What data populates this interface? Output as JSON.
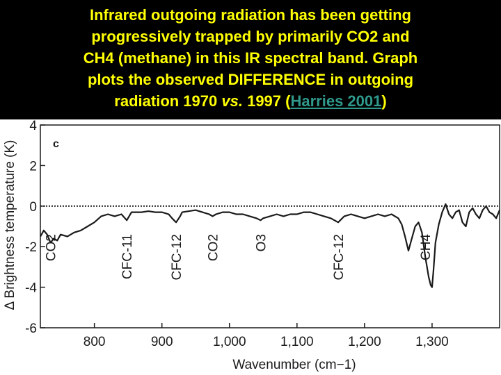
{
  "headline": {
    "line1": "Infrared outgoing radiation has been getting",
    "line2": "progressively trapped by primarily CO2 and",
    "line3": "CH4 (methane) in this IR spectral band. Graph",
    "line4": "plots the observed DIFFERENCE in outgoing",
    "line5_pre": "radiation 1970 ",
    "line5_ital": "vs.",
    "line5_mid": " 1997 (",
    "line5_link": "Harries 2001",
    "line5_post": ")",
    "text_color": "#ffff00",
    "link_color": "#2f9a8c",
    "background": "#000000"
  },
  "chart_data": {
    "type": "line",
    "panel_label": "c",
    "xlabel": "Wavenumber (cm−1)",
    "ylabel": "Δ Brightness temperature (K)",
    "xlim": [
      720,
      1400
    ],
    "ylim": [
      -6,
      4
    ],
    "xticks": [
      800,
      900,
      1000,
      1100,
      1200,
      1300
    ],
    "xtick_labels": [
      "800",
      "900",
      "1,000",
      "1,100",
      "1,200",
      "1,300"
    ],
    "yticks": [
      4,
      2,
      0,
      -2,
      -4,
      -6
    ],
    "ytick_labels": [
      "4",
      "2",
      "0",
      "-2",
      "-4",
      "-6"
    ],
    "reference_line": {
      "y": 0,
      "style": "dotted"
    },
    "annotations": [
      {
        "text": "CO2",
        "x": 735
      },
      {
        "text": "CFC-11",
        "x": 848
      },
      {
        "text": "CFC-12",
        "x": 921
      },
      {
        "text": "CO2",
        "x": 975
      },
      {
        "text": "O3",
        "x": 1046
      },
      {
        "text": "CFC-12",
        "x": 1161
      },
      {
        "text": "CH4",
        "x": 1290
      }
    ],
    "series": [
      {
        "x": [
          720,
          725,
          730,
          735,
          740,
          745,
          750,
          760,
          770,
          780,
          790,
          800,
          810,
          820,
          830,
          840,
          848,
          855,
          860,
          870,
          880,
          890,
          900,
          910,
          915,
          921,
          927,
          930,
          940,
          950,
          960,
          970,
          975,
          980,
          990,
          1000,
          1010,
          1020,
          1030,
          1040,
          1046,
          1050,
          1060,
          1070,
          1080,
          1090,
          1100,
          1110,
          1120,
          1130,
          1140,
          1150,
          1161,
          1170,
          1180,
          1190,
          1200,
          1210,
          1220,
          1230,
          1240,
          1250,
          1255,
          1260,
          1265,
          1270,
          1275,
          1280,
          1285,
          1290,
          1295,
          1298,
          1300,
          1302,
          1305,
          1310,
          1315,
          1320,
          1325,
          1330,
          1335,
          1340,
          1345,
          1350,
          1355,
          1360,
          1365,
          1370,
          1375,
          1380,
          1385,
          1390,
          1395,
          1400
        ],
        "y": [
          -1.5,
          -1.2,
          -1.4,
          -1.8,
          -1.6,
          -1.7,
          -1.4,
          -1.5,
          -1.3,
          -1.2,
          -1.0,
          -0.8,
          -0.5,
          -0.4,
          -0.5,
          -0.4,
          -0.7,
          -0.3,
          -0.3,
          -0.3,
          -0.25,
          -0.3,
          -0.3,
          -0.4,
          -0.6,
          -0.8,
          -0.5,
          -0.3,
          -0.25,
          -0.2,
          -0.3,
          -0.4,
          -0.5,
          -0.4,
          -0.3,
          -0.3,
          -0.4,
          -0.4,
          -0.5,
          -0.6,
          -0.7,
          -0.6,
          -0.5,
          -0.4,
          -0.5,
          -0.4,
          -0.4,
          -0.3,
          -0.3,
          -0.4,
          -0.5,
          -0.6,
          -0.8,
          -0.5,
          -0.4,
          -0.5,
          -0.6,
          -0.5,
          -0.4,
          -0.5,
          -0.4,
          -0.6,
          -0.9,
          -1.5,
          -2.2,
          -1.6,
          -1.0,
          -0.8,
          -1.3,
          -2.5,
          -3.5,
          -3.9,
          -4.0,
          -3.2,
          -1.8,
          -0.9,
          -0.3,
          0.1,
          -0.4,
          -0.6,
          -0.3,
          -0.2,
          -0.8,
          -1.0,
          -0.3,
          -0.1,
          -0.4,
          -0.6,
          -0.2,
          0.0,
          -0.3,
          -0.4,
          -0.6,
          -0.2
        ]
      }
    ],
    "line_color": "#1a1a1a"
  }
}
